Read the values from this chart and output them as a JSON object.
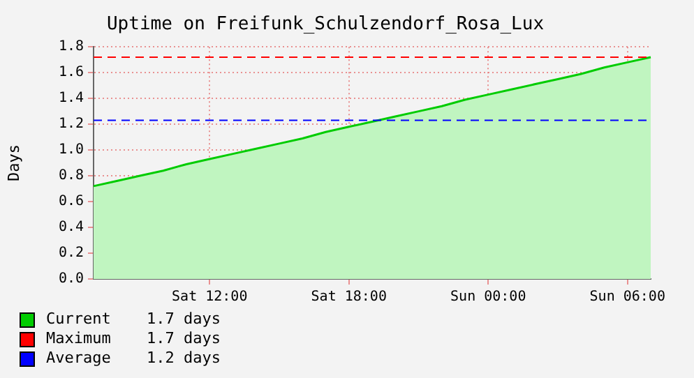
{
  "chart_data": {
    "type": "area",
    "title": "Uptime on Freifunk_Schulzendorf_Rosa_Lux",
    "ylabel": "Days",
    "categories": [
      null,
      null,
      null,
      null,
      null,
      "Sat 12:00",
      null,
      null,
      null,
      null,
      null,
      "Sat 18:00",
      null,
      null,
      null,
      null,
      null,
      "Sun 00:00",
      null,
      null,
      null,
      null,
      null,
      "Sun 06:00",
      null
    ],
    "series": [
      {
        "name": "Current",
        "color": "#00cc00",
        "values": [
          0.72,
          0.76,
          0.8,
          0.84,
          0.89,
          0.93,
          0.97,
          1.01,
          1.05,
          1.09,
          1.14,
          1.18,
          1.22,
          1.26,
          1.3,
          1.34,
          1.39,
          1.43,
          1.47,
          1.51,
          1.55,
          1.59,
          1.64,
          1.68,
          1.72
        ]
      }
    ],
    "ylim": [
      0,
      1.8
    ],
    "yticks": [
      {
        "value": 0,
        "label": "0.0"
      },
      {
        "value": 0.2,
        "label": "0.2"
      },
      {
        "value": 0.4,
        "label": "0.4"
      },
      {
        "value": 0.6,
        "label": "0.6"
      },
      {
        "value": 0.8,
        "label": "0.8"
      },
      {
        "value": 1,
        "label": "1.0"
      },
      {
        "value": 1.2,
        "label": "1.2"
      },
      {
        "value": 1.4,
        "label": "1.4"
      },
      {
        "value": 1.6,
        "label": "1.6"
      },
      {
        "value": 1.8,
        "label": "1.8"
      }
    ],
    "ref_lines": [
      {
        "axis": "y",
        "value": 1.72,
        "label": "Maximum",
        "color": "#ff0000",
        "line_style": "dashed"
      },
      {
        "axis": "y",
        "value": 1.23,
        "label": "Average",
        "color": "#0000ff",
        "line_style": "dashed"
      }
    ],
    "annotations": [
      "1.7 days",
      "1.7 days",
      "1.2 days"
    ],
    "grid": true,
    "legend": "bottom left",
    "marker": "none",
    "line_style": "solid"
  }
}
